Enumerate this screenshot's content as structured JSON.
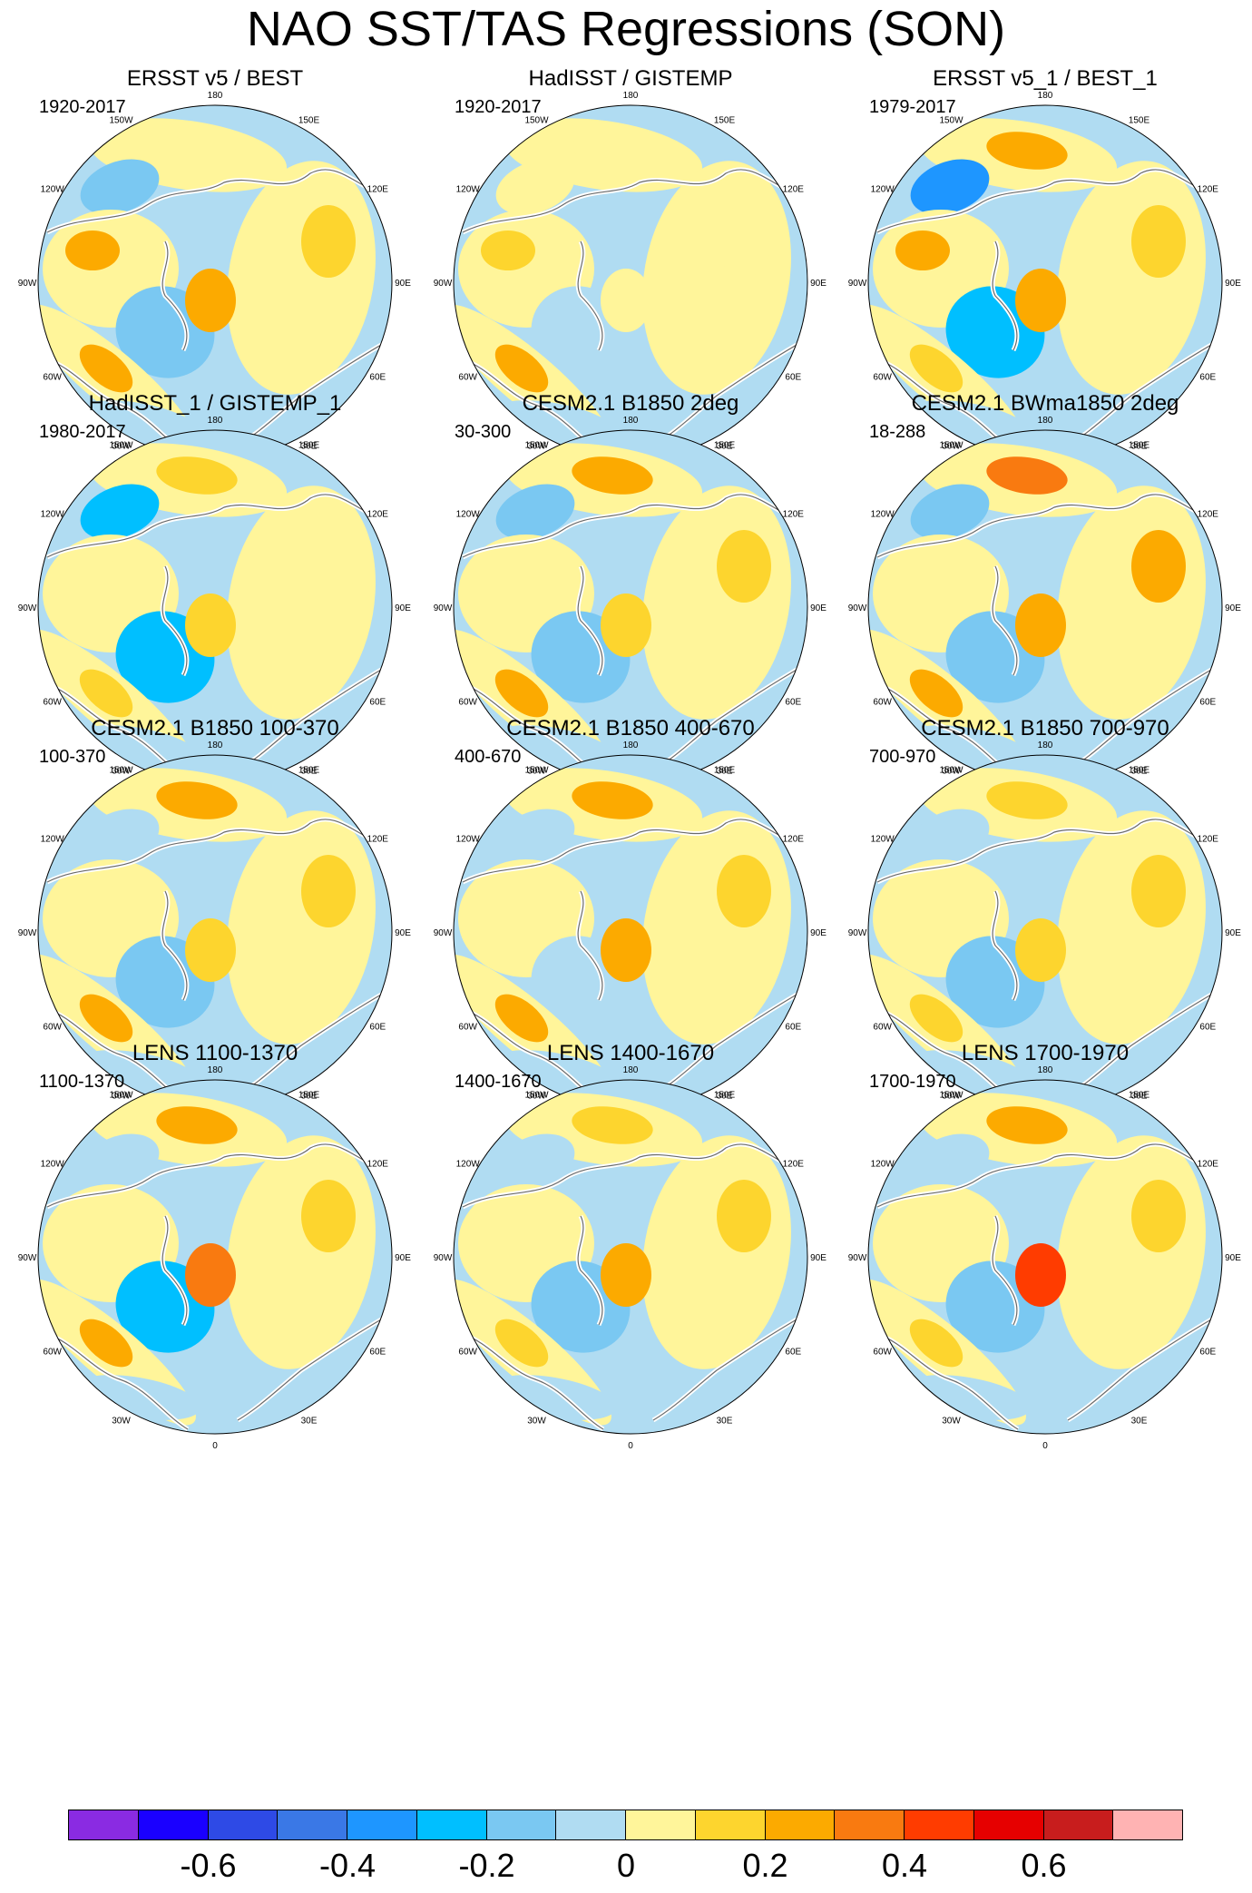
{
  "title": "NAO SST/TAS Regressions (SON)",
  "panels": [
    {
      "title": "ERSST v5 / BEST",
      "range": "1920-2017",
      "pattern": [
        0.05,
        -0.15,
        0.1,
        0.2,
        -0.2,
        0.25,
        0.3
      ]
    },
    {
      "title": "HadISST / GISTEMP",
      "range": "1920-2017",
      "pattern": [
        0.05,
        0.0,
        0.0,
        0.1,
        -0.1,
        0.05,
        0.25
      ]
    },
    {
      "title": "ERSST v5_1 / BEST_1",
      "range": "1979-2017",
      "pattern": [
        0.3,
        -0.35,
        0.1,
        0.2,
        -0.3,
        0.25,
        0.15
      ]
    },
    {
      "title": "HadISST_1 / GISTEMP_1",
      "range": "1980-2017",
      "pattern": [
        0.1,
        -0.3,
        0.05,
        0.05,
        -0.3,
        0.1,
        0.1
      ]
    },
    {
      "title": "CESM2.1 B1850 2deg",
      "range": "30-300",
      "pattern": [
        0.25,
        -0.15,
        0.15,
        0.05,
        -0.15,
        0.1,
        0.25
      ]
    },
    {
      "title": "CESM2.1 BWma1850 2deg",
      "range": "18-288",
      "pattern": [
        0.35,
        -0.15,
        0.2,
        0.05,
        -0.15,
        0.2,
        0.3
      ]
    },
    {
      "title": "CESM2.1 B1850 100-370",
      "range": "100-370",
      "pattern": [
        0.2,
        -0.1,
        0.15,
        0.05,
        -0.15,
        0.1,
        0.25
      ]
    },
    {
      "title": "CESM2.1 B1850 400-670",
      "range": "400-670",
      "pattern": [
        0.2,
        -0.1,
        0.1,
        0.05,
        -0.1,
        0.25,
        0.2
      ]
    },
    {
      "title": "CESM2.1 B1850 700-970",
      "range": "700-970",
      "pattern": [
        0.15,
        -0.1,
        0.1,
        0.05,
        -0.15,
        0.1,
        0.15
      ]
    },
    {
      "title": "LENS 1100-1370",
      "range": "1100-1370",
      "pattern": [
        0.25,
        -0.1,
        0.15,
        0.05,
        -0.25,
        0.35,
        0.2
      ]
    },
    {
      "title": "LENS 1400-1670",
      "range": "1400-1670",
      "pattern": [
        0.1,
        -0.1,
        0.1,
        0.05,
        -0.2,
        0.25,
        0.1
      ]
    },
    {
      "title": "LENS 1700-1970",
      "range": "1700-1970",
      "pattern": [
        0.2,
        -0.1,
        0.1,
        0.05,
        -0.2,
        0.45,
        0.15
      ]
    }
  ],
  "longitude_labels": [
    "180",
    "150E",
    "120E",
    "90E",
    "60E",
    "30E",
    "0",
    "30W",
    "60W",
    "90W",
    "120W",
    "150W"
  ],
  "colorbar": {
    "colors": [
      "#8a2be2",
      "#1a00ff",
      "#2e4ae6",
      "#3a78e6",
      "#1e96ff",
      "#00bfff",
      "#7ac8f2",
      "#b0dcf2",
      "#fff59a",
      "#fdd52e",
      "#fcaa00",
      "#f97a10",
      "#ff3c00",
      "#e60000",
      "#c81d1d",
      "#ffb3b3"
    ],
    "labels": [
      "-0.6",
      "-0.4",
      "-0.2",
      "0",
      "0.2",
      "0.4",
      "0.6"
    ]
  }
}
